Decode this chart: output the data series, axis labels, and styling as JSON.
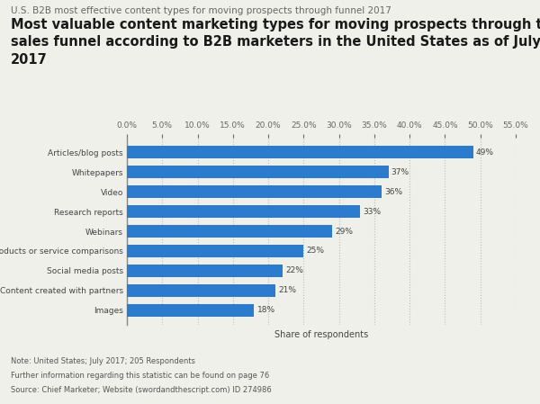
{
  "subtitle": "U.S. B2B most effective content types for moving prospects through funnel 2017",
  "title": "Most valuable content marketing types for moving prospects through the\nsales funnel according to B2B marketers in the United States as of July\n2017",
  "categories": [
    "Images",
    "Content created with partners",
    "Social media posts",
    "Products or service comparisons",
    "Webinars",
    "Research reports",
    "Video",
    "Whitepapers",
    "Articles/blog posts"
  ],
  "values": [
    18,
    21,
    22,
    25,
    29,
    33,
    36,
    37,
    49
  ],
  "bar_color": "#2b7bce",
  "xlabel": "Share of respondents",
  "xlim": [
    0,
    55
  ],
  "xticks": [
    0,
    5,
    10,
    15,
    20,
    25,
    30,
    35,
    40,
    45,
    50,
    55
  ],
  "note_line1": "Note: United States; July 2017; 205 Respondents",
  "note_line2": "Further information regarding this statistic can be found on page 76",
  "note_line3": "Source: Chief Marketer; Website (swordandthescript.com) ID 274986",
  "background_color": "#f0f0eb",
  "bar_label_fontsize": 6.5,
  "ytick_fontsize": 6.5,
  "xtick_fontsize": 6.5,
  "title_fontsize": 10.5,
  "subtitle_fontsize": 7.5,
  "note_fontsize": 6.0
}
